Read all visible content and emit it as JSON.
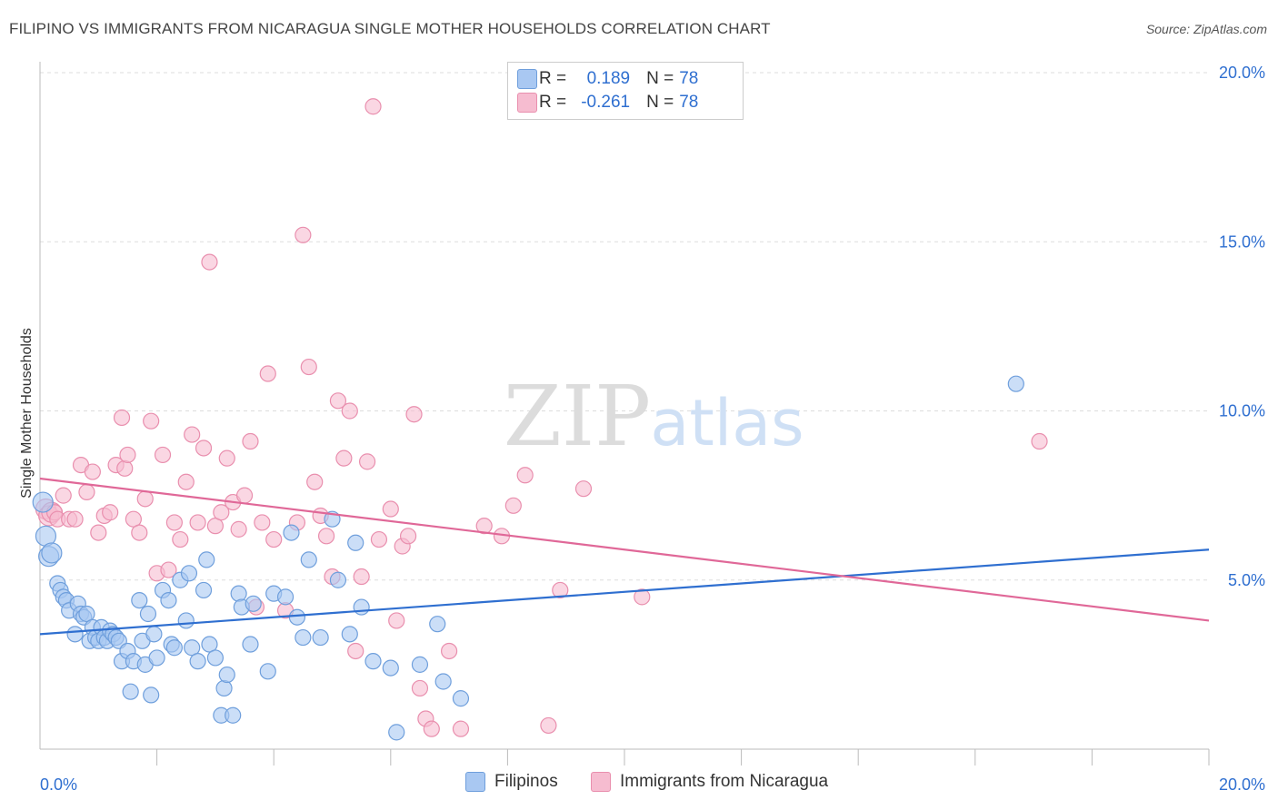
{
  "header": {
    "title": "FILIPINO VS IMMIGRANTS FROM NICARAGUA SINGLE MOTHER HOUSEHOLDS CORRELATION CHART",
    "source": "Source: ZipAtlas.com"
  },
  "watermark": {
    "zip": "ZIP",
    "atlas": "atlas"
  },
  "legend_top": {
    "rows": [
      {
        "r_label": "R =",
        "r_value": "0.189",
        "n_label": "N =",
        "n_value": "78"
      },
      {
        "r_label": "R =",
        "r_value": "-0.261",
        "n_label": "N =",
        "n_value": "78"
      }
    ]
  },
  "legend_bottom": {
    "items": [
      "Filipinos",
      "Immigrants from Nicaragua"
    ]
  },
  "colors": {
    "blue_fill": "#a9c8f2",
    "blue_stroke": "#6f9fdc",
    "blue_line": "#2f6fd0",
    "pink_fill": "#f6bcd0",
    "pink_stroke": "#e98fae",
    "pink_line": "#e06898",
    "axis_label": "#2f6fd0",
    "grid": "#dddddd"
  },
  "chart_data": {
    "type": "scatter",
    "title": "FILIPINO VS IMMIGRANTS FROM NICARAGUA SINGLE MOTHER HOUSEHOLDS CORRELATION CHART",
    "xlabel": "",
    "ylabel": "Single Mother Households",
    "xlim": [
      0,
      20
    ],
    "ylim": [
      0,
      20
    ],
    "x_tick_labels": [
      "0.0%",
      "20.0%"
    ],
    "y_tick_labels": [
      "5.0%",
      "10.0%",
      "15.0%",
      "20.0%"
    ],
    "y_ticks": [
      5,
      10,
      15,
      20
    ],
    "grid": true,
    "legend_position": "bottom",
    "series": [
      {
        "name": "Filipinos",
        "R": 0.189,
        "N": 78,
        "trend": {
          "x": [
            0,
            20
          ],
          "y": [
            3.4,
            5.9
          ]
        },
        "points": [
          [
            0.05,
            7.3
          ],
          [
            0.1,
            6.3
          ],
          [
            0.15,
            5.7
          ],
          [
            0.2,
            5.8
          ],
          [
            0.3,
            4.9
          ],
          [
            0.35,
            4.7
          ],
          [
            0.4,
            4.5
          ],
          [
            0.45,
            4.4
          ],
          [
            0.5,
            4.1
          ],
          [
            0.6,
            3.4
          ],
          [
            0.65,
            4.3
          ],
          [
            0.7,
            4.0
          ],
          [
            0.75,
            3.9
          ],
          [
            0.8,
            4.0
          ],
          [
            0.85,
            3.2
          ],
          [
            0.9,
            3.6
          ],
          [
            0.95,
            3.3
          ],
          [
            1.0,
            3.2
          ],
          [
            1.05,
            3.6
          ],
          [
            1.1,
            3.3
          ],
          [
            1.15,
            3.2
          ],
          [
            1.2,
            3.5
          ],
          [
            1.25,
            3.4
          ],
          [
            1.3,
            3.3
          ],
          [
            1.35,
            3.2
          ],
          [
            1.4,
            2.6
          ],
          [
            1.5,
            2.9
          ],
          [
            1.55,
            1.7
          ],
          [
            1.6,
            2.6
          ],
          [
            1.7,
            4.4
          ],
          [
            1.75,
            3.2
          ],
          [
            1.8,
            2.5
          ],
          [
            1.85,
            4.0
          ],
          [
            1.9,
            1.6
          ],
          [
            1.95,
            3.4
          ],
          [
            2.0,
            2.7
          ],
          [
            2.1,
            4.7
          ],
          [
            2.2,
            4.4
          ],
          [
            2.25,
            3.1
          ],
          [
            2.3,
            3.0
          ],
          [
            2.4,
            5.0
          ],
          [
            2.5,
            3.8
          ],
          [
            2.55,
            5.2
          ],
          [
            2.6,
            3.0
          ],
          [
            2.7,
            2.6
          ],
          [
            2.8,
            4.7
          ],
          [
            2.85,
            5.6
          ],
          [
            2.9,
            3.1
          ],
          [
            3.0,
            2.7
          ],
          [
            3.1,
            1.0
          ],
          [
            3.15,
            1.8
          ],
          [
            3.2,
            2.2
          ],
          [
            3.3,
            1.0
          ],
          [
            3.4,
            4.6
          ],
          [
            3.45,
            4.2
          ],
          [
            3.6,
            3.1
          ],
          [
            3.65,
            4.3
          ],
          [
            3.9,
            2.3
          ],
          [
            4.0,
            4.6
          ],
          [
            4.2,
            4.5
          ],
          [
            4.3,
            6.4
          ],
          [
            4.4,
            3.9
          ],
          [
            4.5,
            3.3
          ],
          [
            4.6,
            5.6
          ],
          [
            4.8,
            3.3
          ],
          [
            5.0,
            6.8
          ],
          [
            5.1,
            5.0
          ],
          [
            5.3,
            3.4
          ],
          [
            5.4,
            6.1
          ],
          [
            5.5,
            4.2
          ],
          [
            5.7,
            2.6
          ],
          [
            6.0,
            2.4
          ],
          [
            6.1,
            0.5
          ],
          [
            6.5,
            2.5
          ],
          [
            6.8,
            3.7
          ],
          [
            6.9,
            2.0
          ],
          [
            7.2,
            1.5
          ],
          [
            16.7,
            10.8
          ]
        ]
      },
      {
        "name": "Immigrants from Nicaragua",
        "R": -0.261,
        "N": 78,
        "trend": {
          "x": [
            0,
            20
          ],
          "y": [
            8.0,
            3.8
          ]
        },
        "points": [
          [
            0.1,
            7.1
          ],
          [
            0.15,
            6.9
          ],
          [
            0.2,
            7.0
          ],
          [
            0.25,
            7.0
          ],
          [
            0.3,
            6.8
          ],
          [
            0.4,
            7.5
          ],
          [
            0.5,
            6.8
          ],
          [
            0.6,
            6.8
          ],
          [
            0.7,
            8.4
          ],
          [
            0.8,
            7.6
          ],
          [
            0.9,
            8.2
          ],
          [
            1.0,
            6.4
          ],
          [
            1.1,
            6.9
          ],
          [
            1.2,
            7.0
          ],
          [
            1.3,
            8.4
          ],
          [
            1.4,
            9.8
          ],
          [
            1.45,
            8.3
          ],
          [
            1.5,
            8.7
          ],
          [
            1.6,
            6.8
          ],
          [
            1.7,
            6.4
          ],
          [
            1.8,
            7.4
          ],
          [
            1.9,
            9.7
          ],
          [
            2.0,
            5.2
          ],
          [
            2.1,
            8.7
          ],
          [
            2.2,
            5.3
          ],
          [
            2.3,
            6.7
          ],
          [
            2.4,
            6.2
          ],
          [
            2.5,
            7.9
          ],
          [
            2.6,
            9.3
          ],
          [
            2.7,
            6.7
          ],
          [
            2.8,
            8.9
          ],
          [
            2.9,
            14.4
          ],
          [
            3.0,
            6.6
          ],
          [
            3.1,
            7.0
          ],
          [
            3.2,
            8.6
          ],
          [
            3.3,
            7.3
          ],
          [
            3.4,
            6.5
          ],
          [
            3.5,
            7.5
          ],
          [
            3.6,
            9.1
          ],
          [
            3.7,
            4.2
          ],
          [
            3.8,
            6.7
          ],
          [
            3.9,
            11.1
          ],
          [
            4.0,
            6.2
          ],
          [
            4.2,
            4.1
          ],
          [
            4.4,
            6.7
          ],
          [
            4.5,
            15.2
          ],
          [
            4.6,
            11.3
          ],
          [
            4.7,
            7.9
          ],
          [
            4.8,
            6.9
          ],
          [
            4.9,
            6.3
          ],
          [
            5.0,
            5.1
          ],
          [
            5.1,
            10.3
          ],
          [
            5.2,
            8.6
          ],
          [
            5.3,
            10.0
          ],
          [
            5.4,
            2.9
          ],
          [
            5.5,
            5.1
          ],
          [
            5.6,
            8.5
          ],
          [
            5.7,
            19.0
          ],
          [
            5.8,
            6.2
          ],
          [
            6.0,
            7.1
          ],
          [
            6.1,
            3.8
          ],
          [
            6.2,
            6.0
          ],
          [
            6.3,
            6.3
          ],
          [
            6.4,
            9.9
          ],
          [
            6.5,
            1.8
          ],
          [
            6.6,
            0.9
          ],
          [
            6.7,
            0.6
          ],
          [
            7.0,
            2.9
          ],
          [
            7.2,
            0.6
          ],
          [
            7.6,
            6.6
          ],
          [
            7.9,
            6.3
          ],
          [
            8.1,
            7.2
          ],
          [
            8.3,
            8.1
          ],
          [
            8.7,
            0.7
          ],
          [
            8.9,
            4.7
          ],
          [
            9.3,
            7.7
          ],
          [
            10.3,
            4.5
          ],
          [
            17.1,
            9.1
          ]
        ]
      }
    ]
  }
}
